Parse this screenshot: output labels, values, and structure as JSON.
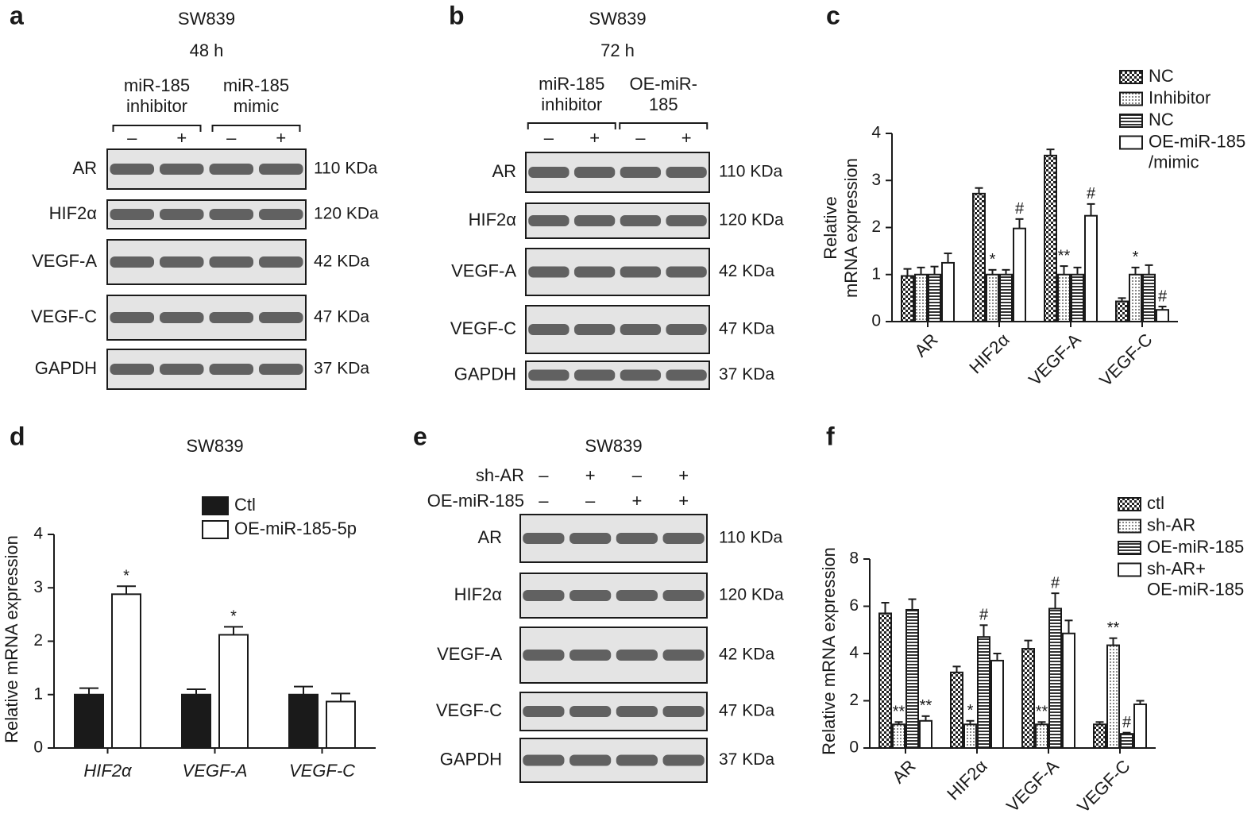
{
  "blots": [
    {
      "panel": "a",
      "title": "SW839",
      "subtitle": "48 h",
      "groups": [
        "miR-185\ninhibitor",
        "miR-185\nmimic"
      ],
      "signs": [
        "–",
        "+",
        "–",
        "+"
      ],
      "rows": [
        {
          "label": "AR",
          "size": "110 KDa"
        },
        {
          "label": "HIF2α",
          "size": "120 KDa"
        },
        {
          "label": "VEGF-A",
          "size": "42 KDa"
        },
        {
          "label": "VEGF-C",
          "size": "47 KDa"
        },
        {
          "label": "GAPDH",
          "size": "37 KDa"
        }
      ]
    },
    {
      "panel": "b",
      "title": "SW839",
      "subtitle": "72 h",
      "groups": [
        "miR-185\ninhibitor",
        "OE-miR-\n185"
      ],
      "signs": [
        "–",
        "+",
        "–",
        "+"
      ],
      "rows": [
        {
          "label": "AR",
          "size": "110 KDa"
        },
        {
          "label": "HIF2α",
          "size": "120 KDa"
        },
        {
          "label": "VEGF-A",
          "size": "42 KDa"
        },
        {
          "label": "VEGF-C",
          "size": "47 KDa"
        },
        {
          "label": "GAPDH",
          "size": "37 KDa"
        }
      ]
    },
    {
      "panel": "e",
      "title": "SW839",
      "conditions": [
        {
          "label": "sh-AR",
          "signs": [
            "–",
            "+",
            "–",
            "+"
          ]
        },
        {
          "label": "OE-miR-185",
          "signs": [
            "–",
            "–",
            "+",
            "+"
          ]
        }
      ],
      "rows": [
        {
          "label": "AR",
          "size": "110 KDa"
        },
        {
          "label": "HIF2α",
          "size": "120 KDa"
        },
        {
          "label": "VEGF-A",
          "size": "42 KDa"
        },
        {
          "label": "VEGF-C",
          "size": "47 KDa"
        },
        {
          "label": "GAPDH",
          "size": "37 KDa"
        }
      ]
    }
  ],
  "chart_data": [
    {
      "type": "bar",
      "panel": "c",
      "ylabel": "Relative\nmRNA expression",
      "categories": [
        "AR",
        "HIF2α",
        "VEGF-A",
        "VEGF-C"
      ],
      "ylim": [
        0,
        4
      ],
      "yticks": [
        0,
        1,
        2,
        3,
        4
      ],
      "series": [
        {
          "name": "NC",
          "pattern": "checker",
          "values": [
            0.97,
            2.72,
            3.53,
            0.43
          ],
          "errors": [
            0.15,
            0.12,
            0.13,
            0.07
          ],
          "significance": [
            null,
            null,
            null,
            null
          ]
        },
        {
          "name": "Inhibitor",
          "pattern": "dots",
          "values": [
            1.0,
            1.0,
            1.0,
            1.0
          ],
          "errors": [
            0.15,
            0.1,
            0.18,
            0.15
          ],
          "significance": [
            null,
            "*",
            "**",
            "*"
          ]
        },
        {
          "name": "NC",
          "pattern": "hlines",
          "values": [
            1.0,
            1.0,
            1.0,
            1.0
          ],
          "errors": [
            0.17,
            0.1,
            0.15,
            0.2
          ],
          "significance": [
            null,
            null,
            null,
            null
          ]
        },
        {
          "name": "OE-miR-185\n/mimic",
          "color": "#ffffff",
          "values": [
            1.25,
            1.98,
            2.25,
            0.25
          ],
          "errors": [
            0.2,
            0.2,
            0.25,
            0.07
          ],
          "significance": [
            null,
            "#",
            "#",
            "#"
          ]
        }
      ]
    },
    {
      "type": "bar",
      "panel": "d",
      "title": "SW839",
      "ylabel": "Relative mRNA expression",
      "categories": [
        "HIF2α",
        "VEGF-A",
        "VEGF-C"
      ],
      "ylim": [
        0,
        4
      ],
      "yticks": [
        0,
        1,
        2,
        3,
        4
      ],
      "series": [
        {
          "name": "Ctl",
          "color": "#1a1a1a",
          "values": [
            1.0,
            1.0,
            1.0
          ],
          "errors": [
            0.12,
            0.1,
            0.15
          ],
          "significance": [
            null,
            null,
            null
          ]
        },
        {
          "name": "OE-miR-185-5p",
          "color": "#ffffff",
          "values": [
            2.88,
            2.12,
            0.87
          ],
          "errors": [
            0.15,
            0.15,
            0.15
          ],
          "significance": [
            "*",
            "*",
            null
          ]
        }
      ]
    },
    {
      "type": "bar",
      "panel": "f",
      "ylabel": "Relative mRNA expression",
      "categories": [
        "AR",
        "HIF2α",
        "VEGF-A",
        "VEGF-C"
      ],
      "ylim": [
        0,
        8
      ],
      "yticks": [
        0,
        2,
        4,
        6,
        8
      ],
      "series": [
        {
          "name": "ctl",
          "pattern": "checker",
          "values": [
            5.7,
            3.2,
            4.2,
            1.0
          ],
          "errors": [
            0.45,
            0.25,
            0.35,
            0.1
          ],
          "significance": [
            null,
            null,
            null,
            null
          ]
        },
        {
          "name": "sh-AR",
          "pattern": "dots",
          "values": [
            1.0,
            1.0,
            1.0,
            4.35
          ],
          "errors": [
            0.1,
            0.15,
            0.1,
            0.3
          ],
          "significance": [
            "**",
            "*",
            "**",
            "**"
          ]
        },
        {
          "name": "OE-miR-185",
          "pattern": "hlines",
          "values": [
            5.85,
            4.7,
            5.9,
            0.6
          ],
          "errors": [
            0.45,
            0.5,
            0.65,
            0.05
          ],
          "significance": [
            null,
            "#",
            "#",
            "#"
          ]
        },
        {
          "name": "sh-AR+\nOE-miR-185",
          "color": "#ffffff",
          "values": [
            1.15,
            3.7,
            4.85,
            1.85
          ],
          "errors": [
            0.2,
            0.3,
            0.55,
            0.15
          ],
          "significance": [
            "**",
            null,
            null,
            null
          ]
        }
      ]
    }
  ]
}
